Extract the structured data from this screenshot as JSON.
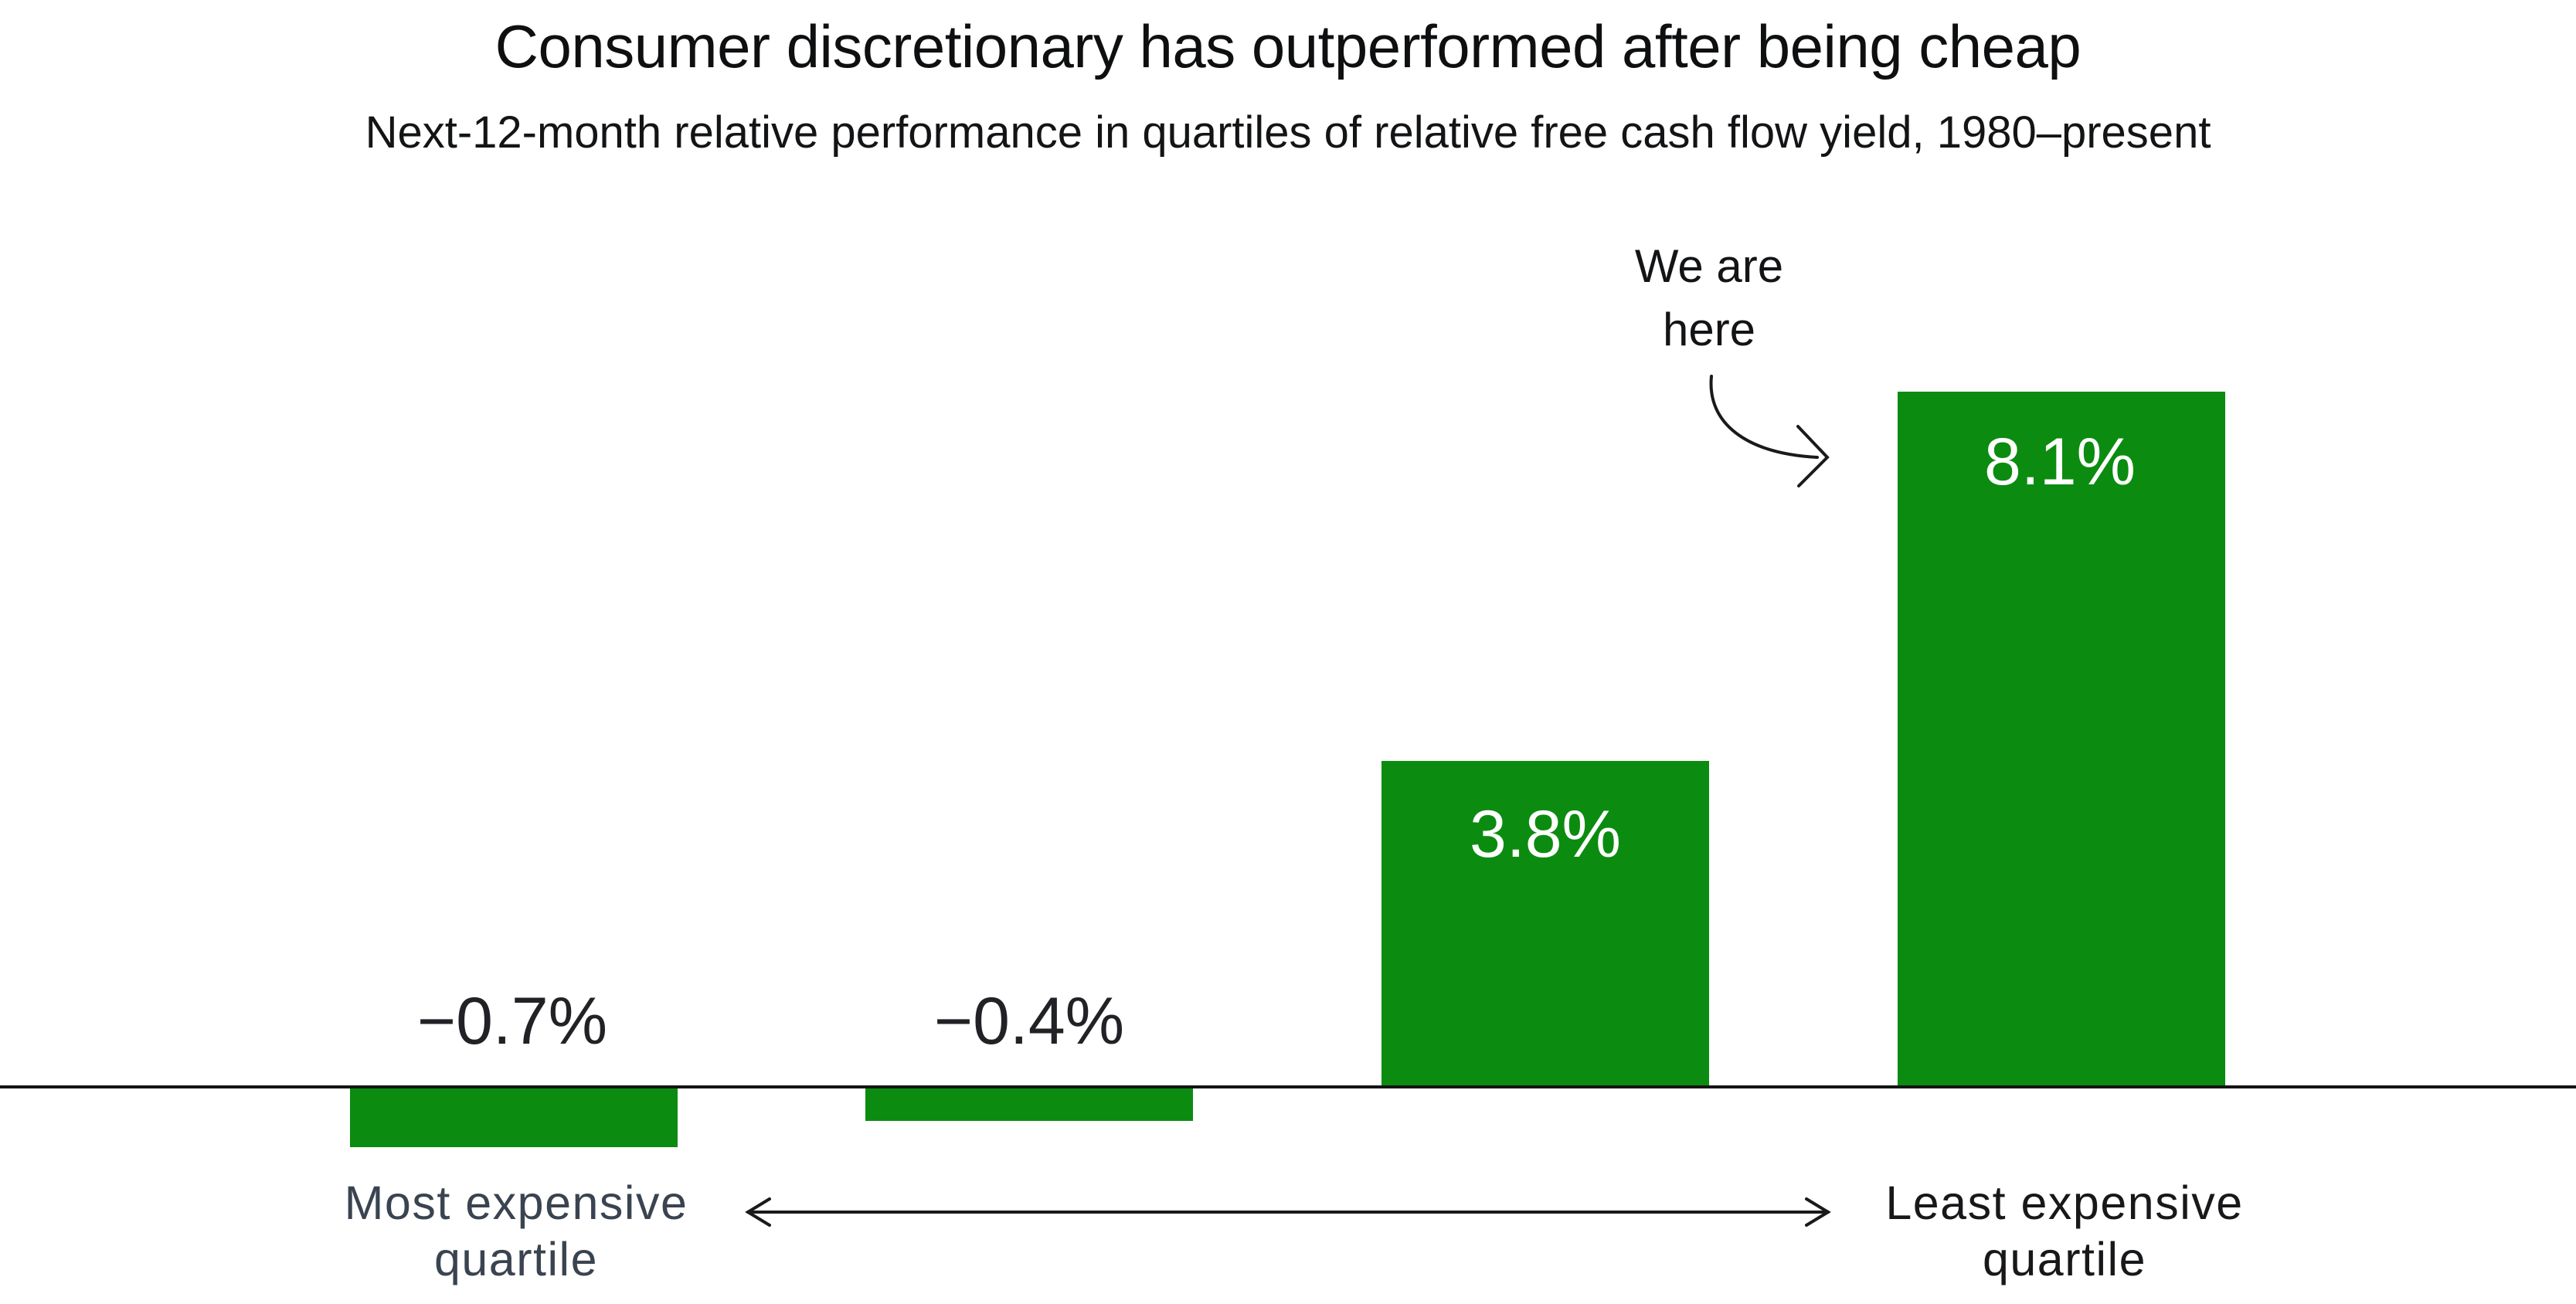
{
  "chart_data": {
    "type": "bar",
    "title": "Consumer discretionary has outperformed after being cheap",
    "subtitle": "Next-12-month relative performance in quartiles of relative free cash flow yield, 1980–present",
    "categories": [
      "Most expensive quartile",
      "",
      "",
      "Least expensive quartile"
    ],
    "values": [
      -0.7,
      -0.4,
      3.8,
      8.1
    ],
    "value_labels": [
      "−0.7%",
      "−0.4%",
      "3.8%",
      "8.1%"
    ],
    "unit": "%",
    "xlabel": "",
    "ylabel": "",
    "grid": false,
    "y_axis_visible": false,
    "baseline_value": 0,
    "legend": "none",
    "annotation": {
      "text_line1": "We are",
      "text_line2": "here",
      "arrow_icon": "curved-arrow",
      "points_to_bar_label": "8.1%"
    },
    "x_axis": {
      "left_label_line1": "Most expensive",
      "left_label_line2": "quartile",
      "right_label_line1": "Least expensive",
      "right_label_line2": "quartile",
      "between_icon": "double-headed-arrow"
    },
    "colors": {
      "bar": "#0b8c10",
      "positive_value_label": "#ffffff",
      "negative_value_label": "#212225",
      "left_axis_label": "#3a4450",
      "right_axis_label": "#17181a",
      "title_text": "#0e0f10",
      "axis_line": "#141414",
      "arrow_stroke": "#1a1a1a",
      "background": "#ffffff"
    }
  }
}
